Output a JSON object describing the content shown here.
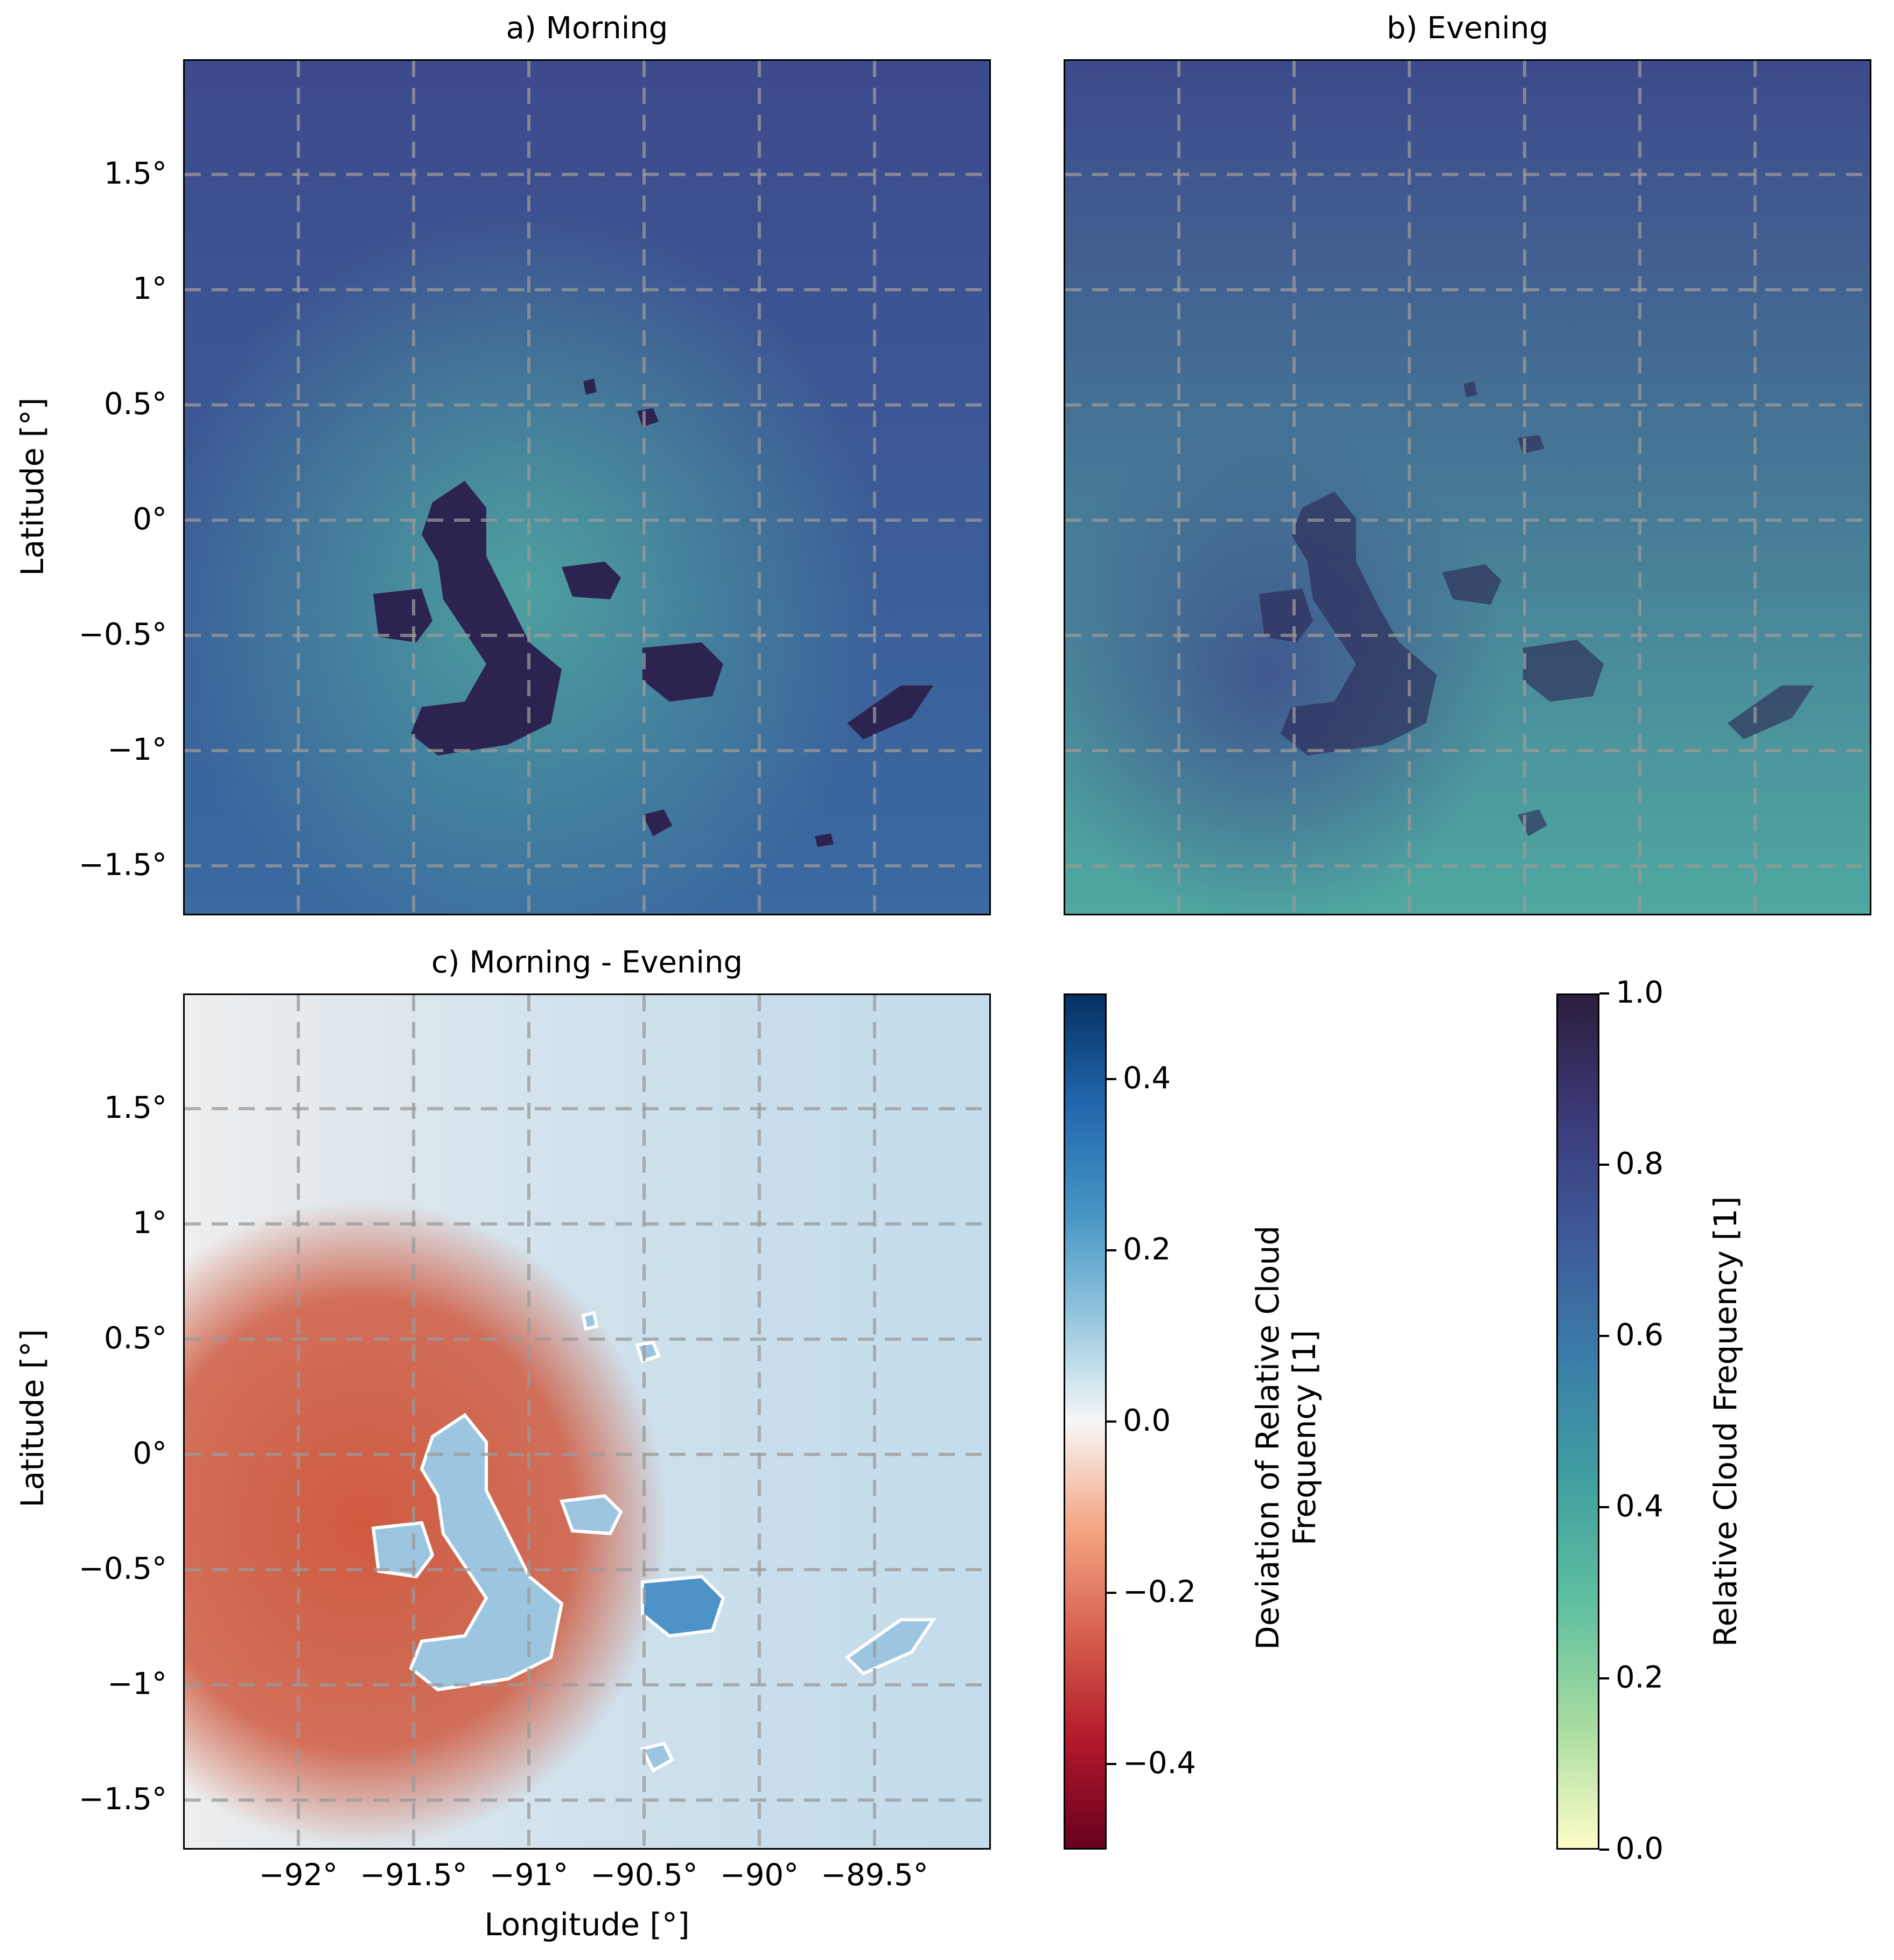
{
  "panels": {
    "a": {
      "title": "a) Morning"
    },
    "b": {
      "title": "b) Evening"
    },
    "c": {
      "title": "c) Morning - Evening"
    }
  },
  "axes": {
    "xlabel": "Longitude [°]",
    "ylabel": "Latitude [°]",
    "lat_ticks": [
      "1.5°",
      "1°",
      "0.5°",
      "0°",
      "−0.5°",
      "−1°",
      "−1.5°"
    ],
    "lon_ticks": [
      "−92°",
      "−91.5°",
      "−91°",
      "−90.5°",
      "−90°",
      "−89.5°"
    ]
  },
  "colorbars": {
    "deviation": {
      "label_line1": "Deviation of Relative Cloud",
      "label_line2": "Frequency [1]",
      "ticks": [
        "0.4",
        "0.2",
        "0.0",
        "−0.2",
        "−0.4"
      ],
      "range": [
        -0.5,
        0.5
      ],
      "colors": [
        "#67001f",
        "#b2182b",
        "#d6604d",
        "#f4a582",
        "#f7f7f7",
        "#92c5de",
        "#4393c3",
        "#2166ac",
        "#053061"
      ]
    },
    "frequency": {
      "label": "Relative Cloud Frequency [1]",
      "ticks": [
        "1.0",
        "0.8",
        "0.6",
        "0.4",
        "0.2",
        "0.0"
      ],
      "range": [
        0,
        1
      ],
      "colors": [
        "#fdfdc8",
        "#a8dca0",
        "#5fc0a0",
        "#40a0a0",
        "#3a7ea8",
        "#3e5a9a",
        "#3b3a78",
        "#2c1d3c"
      ]
    }
  },
  "map_colors": {
    "morning_base": "#3a6aa0",
    "morning_top": "#3d4a8c",
    "morning_glow": "#4fa8a0",
    "evening_base": "#3a6aa0",
    "evening_top": "#3d4a8c",
    "island_dark": "#2c2350",
    "diff_red": "#cf5a40",
    "diff_blue": "#9cc6e0",
    "diff_white": "#eeeeee"
  }
}
